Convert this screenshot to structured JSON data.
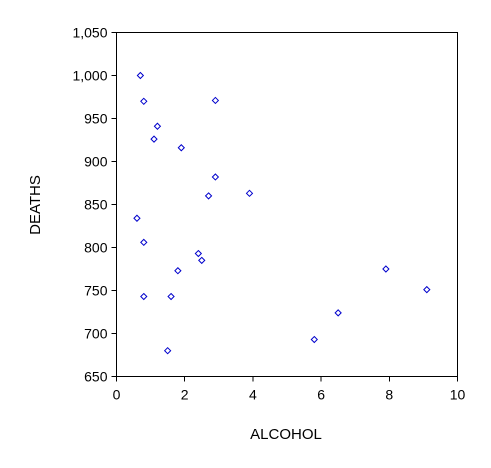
{
  "chart_data": {
    "type": "scatter",
    "title": "",
    "xlabel": "ALCOHOL",
    "ylabel": "DEATHS",
    "xlim": [
      0,
      10
    ],
    "ylim": [
      650,
      1050
    ],
    "xticks": [
      0,
      2,
      4,
      6,
      8,
      10
    ],
    "xtick_labels": [
      "0",
      "2",
      "4",
      "6",
      "8",
      "10"
    ],
    "yticks": [
      650,
      700,
      750,
      800,
      850,
      900,
      950,
      1000,
      1050
    ],
    "ytick_labels": [
      "650",
      "700",
      "750",
      "800",
      "850",
      "900",
      "950",
      "1,000",
      "1,050"
    ],
    "grid": false,
    "legend": "none",
    "marker": "diamond",
    "marker_color": "#0000cc",
    "points": [
      {
        "x": 0.7,
        "y": 1000
      },
      {
        "x": 0.8,
        "y": 970
      },
      {
        "x": 2.9,
        "y": 971
      },
      {
        "x": 1.2,
        "y": 941
      },
      {
        "x": 1.1,
        "y": 926
      },
      {
        "x": 1.9,
        "y": 916
      },
      {
        "x": 2.9,
        "y": 882
      },
      {
        "x": 3.9,
        "y": 863
      },
      {
        "x": 2.7,
        "y": 860
      },
      {
        "x": 0.6,
        "y": 834
      },
      {
        "x": 0.8,
        "y": 806
      },
      {
        "x": 2.4,
        "y": 793
      },
      {
        "x": 2.5,
        "y": 785
      },
      {
        "x": 1.8,
        "y": 773
      },
      {
        "x": 0.8,
        "y": 743
      },
      {
        "x": 1.6,
        "y": 743
      },
      {
        "x": 1.5,
        "y": 680
      },
      {
        "x": 5.8,
        "y": 693
      },
      {
        "x": 6.5,
        "y": 724
      },
      {
        "x": 7.9,
        "y": 775
      },
      {
        "x": 9.1,
        "y": 751
      }
    ]
  }
}
